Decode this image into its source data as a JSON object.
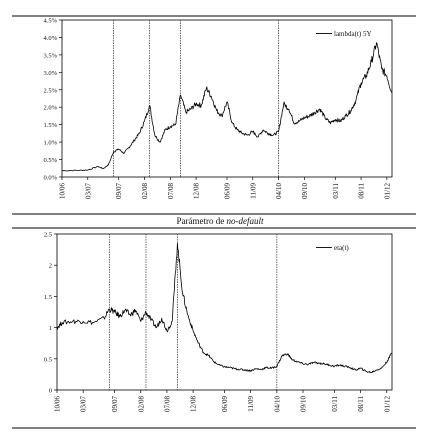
{
  "chart_data": [
    {
      "type": "line",
      "x_ticks": [
        "10/06",
        "03/07",
        "09/07",
        "02/08",
        "07/08",
        "12/08",
        "06/09",
        "11/09",
        "04/10",
        "09/10",
        "03/11",
        "08/11",
        "01/12"
      ],
      "y_ticks": [
        "0.0%",
        "0.5%",
        "1.0%",
        "1.5%",
        "2.0%",
        "2.5%",
        "3.0%",
        "3.5%",
        "4.0%",
        "4.5%"
      ],
      "ylim": [
        0,
        4.5
      ],
      "y_unit": "%",
      "grid": false,
      "legend_position": "top-right",
      "vlines_at": [
        "08/07",
        "03/08",
        "09/08",
        "04/10"
      ],
      "series": [
        {
          "name": "lambda(t) 5Y",
          "color": "#000000",
          "points": [
            [
              "10/06",
              0.18
            ],
            [
              "01/07",
              0.19
            ],
            [
              "03/07",
              0.2
            ],
            [
              "05/07",
              0.3
            ],
            [
              "06/07",
              0.24
            ],
            [
              "07/07",
              0.35
            ],
            [
              "08/07",
              0.72
            ],
            [
              "09/07",
              0.8
            ],
            [
              "10/07",
              0.68
            ],
            [
              "11/07",
              0.85
            ],
            [
              "12/07",
              1.05
            ],
            [
              "01/08",
              1.25
            ],
            [
              "02/08",
              1.6
            ],
            [
              "03/08",
              2.05
            ],
            [
              "04/08",
              1.2
            ],
            [
              "05/08",
              1.0
            ],
            [
              "06/08",
              1.35
            ],
            [
              "07/08",
              1.45
            ],
            [
              "08/08",
              1.5
            ],
            [
              "09/08",
              2.35
            ],
            [
              "10/08",
              1.85
            ],
            [
              "11/08",
              1.95
            ],
            [
              "12/08",
              2.1
            ],
            [
              "01/09",
              2.05
            ],
            [
              "02/09",
              2.55
            ],
            [
              "03/09",
              2.3
            ],
            [
              "04/09",
              1.9
            ],
            [
              "05/09",
              1.75
            ],
            [
              "06/09",
              2.15
            ],
            [
              "07/09",
              1.55
            ],
            [
              "08/09",
              1.35
            ],
            [
              "09/09",
              1.25
            ],
            [
              "10/09",
              1.2
            ],
            [
              "11/09",
              1.3
            ],
            [
              "12/09",
              1.15
            ],
            [
              "01/10",
              1.35
            ],
            [
              "02/10",
              1.25
            ],
            [
              "03/10",
              1.2
            ],
            [
              "04/10",
              1.3
            ],
            [
              "05/10",
              2.1
            ],
            [
              "06/10",
              1.95
            ],
            [
              "07/10",
              1.55
            ],
            [
              "08/10",
              1.6
            ],
            [
              "09/10",
              1.7
            ],
            [
              "10/10",
              1.75
            ],
            [
              "11/10",
              1.85
            ],
            [
              "12/10",
              1.95
            ],
            [
              "01/11",
              1.7
            ],
            [
              "02/11",
              1.55
            ],
            [
              "03/11",
              1.65
            ],
            [
              "04/11",
              1.6
            ],
            [
              "05/11",
              1.75
            ],
            [
              "06/11",
              1.9
            ],
            [
              "07/11",
              2.2
            ],
            [
              "08/11",
              2.7
            ],
            [
              "09/11",
              2.9
            ],
            [
              "10/11",
              3.3
            ],
            [
              "11/11",
              3.85
            ],
            [
              "12/11",
              3.1
            ],
            [
              "01/12",
              2.9
            ],
            [
              "02/12",
              2.4
            ]
          ]
        }
      ]
    },
    {
      "type": "line",
      "title": "Parámetro de no-default",
      "x_ticks": [
        "10/06",
        "03/07",
        "09/07",
        "02/08",
        "07/08",
        "12/08",
        "06/09",
        "11/09",
        "04/10",
        "09/10",
        "03/11",
        "08/11",
        "01/12"
      ],
      "y_ticks": [
        "0",
        "0.5",
        "1",
        "1.5",
        "2",
        "2.5"
      ],
      "ylim": [
        0,
        2.5
      ],
      "grid": false,
      "legend_position": "top-right",
      "vlines_at": [
        "08/07",
        "03/08",
        "09/08",
        "04/10"
      ],
      "series": [
        {
          "name": "eta(t)",
          "color": "#000000",
          "points": [
            [
              "10/06",
              1.0
            ],
            [
              "11/06",
              1.08
            ],
            [
              "01/07",
              1.1
            ],
            [
              "03/07",
              1.1
            ],
            [
              "05/07",
              1.08
            ],
            [
              "07/07",
              1.15
            ],
            [
              "08/07",
              1.3
            ],
            [
              "09/07",
              1.25
            ],
            [
              "10/07",
              1.18
            ],
            [
              "11/07",
              1.28
            ],
            [
              "12/07",
              1.2
            ],
            [
              "01/08",
              1.28
            ],
            [
              "02/08",
              1.1
            ],
            [
              "03/08",
              1.25
            ],
            [
              "04/08",
              1.12
            ],
            [
              "05/08",
              1.0
            ],
            [
              "06/08",
              1.15
            ],
            [
              "07/08",
              0.95
            ],
            [
              "08/08",
              1.1
            ],
            [
              "09/08",
              2.35
            ],
            [
              "10/08",
              1.55
            ],
            [
              "11/08",
              1.2
            ],
            [
              "12/08",
              0.95
            ],
            [
              "01/09",
              0.75
            ],
            [
              "02/09",
              0.6
            ],
            [
              "03/09",
              0.55
            ],
            [
              "04/09",
              0.45
            ],
            [
              "05/09",
              0.4
            ],
            [
              "06/09",
              0.37
            ],
            [
              "07/09",
              0.36
            ],
            [
              "08/09",
              0.34
            ],
            [
              "09/09",
              0.33
            ],
            [
              "10/09",
              0.32
            ],
            [
              "11/09",
              0.31
            ],
            [
              "12/09",
              0.34
            ],
            [
              "01/10",
              0.33
            ],
            [
              "02/10",
              0.36
            ],
            [
              "03/10",
              0.35
            ],
            [
              "04/10",
              0.38
            ],
            [
              "05/10",
              0.55
            ],
            [
              "06/10",
              0.58
            ],
            [
              "07/10",
              0.48
            ],
            [
              "08/10",
              0.45
            ],
            [
              "09/10",
              0.42
            ],
            [
              "10/10",
              0.41
            ],
            [
              "11/10",
              0.44
            ],
            [
              "12/10",
              0.43
            ],
            [
              "01/11",
              0.42
            ],
            [
              "02/11",
              0.4
            ],
            [
              "03/11",
              0.38
            ],
            [
              "04/11",
              0.4
            ],
            [
              "05/11",
              0.38
            ],
            [
              "06/11",
              0.36
            ],
            [
              "07/11",
              0.32
            ],
            [
              "08/11",
              0.35
            ],
            [
              "09/11",
              0.3
            ],
            [
              "10/11",
              0.28
            ],
            [
              "11/11",
              0.32
            ],
            [
              "12/11",
              0.35
            ],
            [
              "01/12",
              0.45
            ],
            [
              "02/12",
              0.6
            ]
          ]
        }
      ]
    }
  ]
}
